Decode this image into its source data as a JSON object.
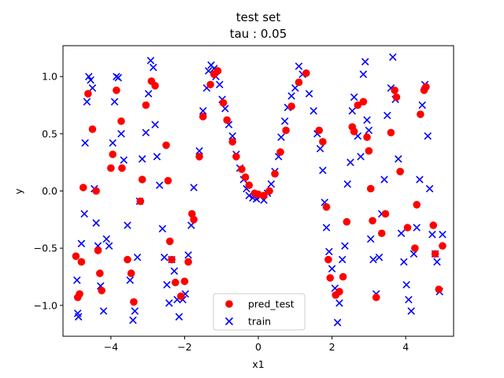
{
  "chart_data": {
    "type": "scatter",
    "title": "test set",
    "subtitle": "tau : 0.05",
    "xlabel": "x1",
    "ylabel": "y",
    "xlim": [
      -5.3,
      5.3
    ],
    "ylim": [
      -1.27,
      1.27
    ],
    "xticks": [
      -4,
      -2,
      0,
      2,
      4
    ],
    "yticks": [
      -1.0,
      -0.5,
      0.0,
      0.5,
      1.0
    ],
    "xtick_labels": [
      "−4",
      "−2",
      "0",
      "2",
      "4"
    ],
    "ytick_labels": [
      "−1.0",
      "−0.5",
      "0.0",
      "0.5",
      "1.0"
    ],
    "grid": false,
    "legend_position": "lower-center",
    "colors": {
      "pred_test": "#ff0000",
      "train": "#0000ff"
    },
    "series": [
      {
        "name": "pred_test",
        "marker": "circle",
        "points": [
          [
            -4.95,
            -0.57
          ],
          [
            -4.9,
            -0.93
          ],
          [
            -4.85,
            -0.9
          ],
          [
            -4.8,
            -0.62
          ],
          [
            -4.75,
            0.03
          ],
          [
            -4.62,
            0.85
          ],
          [
            -4.5,
            0.54
          ],
          [
            -4.4,
            0.0
          ],
          [
            -4.35,
            -0.52
          ],
          [
            -4.3,
            -0.72
          ],
          [
            -4.25,
            -0.87
          ],
          [
            -4.0,
            0.2
          ],
          [
            -3.95,
            0.32
          ],
          [
            -3.85,
            0.88
          ],
          [
            -3.72,
            0.61
          ],
          [
            -3.7,
            0.2
          ],
          [
            -3.55,
            -0.6
          ],
          [
            -3.45,
            -0.72
          ],
          [
            -3.38,
            -0.97
          ],
          [
            -3.2,
            -0.09
          ],
          [
            -3.15,
            0.1
          ],
          [
            -3.05,
            0.75
          ],
          [
            -2.9,
            0.96
          ],
          [
            -2.8,
            0.92
          ],
          [
            -2.5,
            0.4
          ],
          [
            -2.45,
            0.09
          ],
          [
            -2.4,
            -0.44
          ],
          [
            -2.35,
            -0.6
          ],
          [
            -2.25,
            -0.8
          ],
          [
            -2.1,
            -0.92
          ],
          [
            -2.0,
            -0.79
          ],
          [
            -1.9,
            -0.62
          ],
          [
            -1.8,
            -0.2
          ],
          [
            -1.75,
            -0.25
          ],
          [
            -1.6,
            0.3
          ],
          [
            -1.5,
            0.65
          ],
          [
            -1.3,
            0.93
          ],
          [
            -1.2,
            1.02
          ],
          [
            -1.1,
            1.05
          ],
          [
            -0.95,
            0.77
          ],
          [
            -0.85,
            0.62
          ],
          [
            -0.7,
            0.43
          ],
          [
            -0.6,
            0.3
          ],
          [
            -0.45,
            0.19
          ],
          [
            -0.35,
            0.12
          ],
          [
            -0.25,
            0.05
          ],
          [
            -0.1,
            -0.02
          ],
          [
            0.0,
            -0.03
          ],
          [
            0.15,
            -0.04
          ],
          [
            0.3,
            0.0
          ],
          [
            0.45,
            0.15
          ],
          [
            0.6,
            0.34
          ],
          [
            0.75,
            0.53
          ],
          [
            0.9,
            0.74
          ],
          [
            1.1,
            0.95
          ],
          [
            1.3,
            1.03
          ],
          [
            1.65,
            0.53
          ],
          [
            1.75,
            0.43
          ],
          [
            1.85,
            -0.14
          ],
          [
            1.9,
            -0.6
          ],
          [
            1.95,
            -0.76
          ],
          [
            2.1,
            -0.91
          ],
          [
            2.2,
            -0.88
          ],
          [
            2.3,
            -0.75
          ],
          [
            2.4,
            -0.27
          ],
          [
            2.55,
            0.56
          ],
          [
            2.6,
            0.52
          ],
          [
            2.7,
            0.75
          ],
          [
            2.85,
            0.78
          ],
          [
            2.95,
            0.47
          ],
          [
            3.0,
            0.35
          ],
          [
            3.05,
            0.02
          ],
          [
            3.1,
            -0.26
          ],
          [
            3.2,
            -0.93
          ],
          [
            3.35,
            -0.37
          ],
          [
            3.45,
            -0.2
          ],
          [
            3.6,
            0.51
          ],
          [
            3.7,
            0.88
          ],
          [
            3.75,
            0.82
          ],
          [
            3.85,
            0.17
          ],
          [
            4.05,
            -0.32
          ],
          [
            4.25,
            -0.5
          ],
          [
            4.3,
            -0.12
          ],
          [
            4.4,
            0.67
          ],
          [
            4.5,
            0.88
          ],
          [
            4.55,
            0.91
          ],
          [
            4.75,
            -0.3
          ],
          [
            4.8,
            -0.55
          ],
          [
            4.9,
            -0.86
          ],
          [
            5.0,
            -0.48
          ]
        ]
      },
      {
        "name": "train",
        "marker": "x",
        "points": [
          [
            -4.92,
            -0.78
          ],
          [
            -4.9,
            -1.07
          ],
          [
            -4.88,
            -1.1
          ],
          [
            -4.8,
            -0.46
          ],
          [
            -4.72,
            -0.2
          ],
          [
            -4.7,
            0.42
          ],
          [
            -4.65,
            0.78
          ],
          [
            -4.6,
            1.0
          ],
          [
            -4.55,
            0.97
          ],
          [
            -4.5,
            0.9
          ],
          [
            -4.45,
            0.02
          ],
          [
            -4.4,
            -0.28
          ],
          [
            -4.35,
            -0.48
          ],
          [
            -4.28,
            -0.83
          ],
          [
            -4.2,
            -1.05
          ],
          [
            -4.12,
            -0.42
          ],
          [
            -4.05,
            -0.48
          ],
          [
            -3.95,
            0.42
          ],
          [
            -3.9,
            0.78
          ],
          [
            -3.85,
            1.0
          ],
          [
            -3.8,
            0.99
          ],
          [
            -3.72,
            0.5
          ],
          [
            -3.65,
            0.27
          ],
          [
            -3.55,
            -0.3
          ],
          [
            -3.48,
            -0.78
          ],
          [
            -3.4,
            -1.13
          ],
          [
            -3.35,
            -1.05
          ],
          [
            -3.28,
            -0.58
          ],
          [
            -3.22,
            -0.09
          ],
          [
            -3.15,
            0.28
          ],
          [
            -3.05,
            0.51
          ],
          [
            -2.98,
            0.85
          ],
          [
            -2.92,
            1.14
          ],
          [
            -2.85,
            1.08
          ],
          [
            -2.8,
            0.58
          ],
          [
            -2.75,
            0.3
          ],
          [
            -2.68,
            0.05
          ],
          [
            -2.6,
            -0.33
          ],
          [
            -2.55,
            -0.58
          ],
          [
            -2.48,
            -0.82
          ],
          [
            -2.42,
            -0.98
          ],
          [
            -2.35,
            -0.6
          ],
          [
            -2.28,
            -0.7
          ],
          [
            -2.2,
            -0.95
          ],
          [
            -2.15,
            -1.1
          ],
          [
            -2.05,
            -0.95
          ],
          [
            -1.98,
            -0.9
          ],
          [
            -1.9,
            -0.56
          ],
          [
            -1.82,
            -0.3
          ],
          [
            -1.75,
            0.03
          ],
          [
            -1.6,
            0.35
          ],
          [
            -1.5,
            0.7
          ],
          [
            -1.4,
            0.9
          ],
          [
            -1.35,
            1.05
          ],
          [
            -1.28,
            1.1
          ],
          [
            -1.2,
            1.07
          ],
          [
            -1.15,
            1.0
          ],
          [
            -1.05,
            0.93
          ],
          [
            -0.98,
            0.8
          ],
          [
            -0.9,
            0.72
          ],
          [
            -0.8,
            0.58
          ],
          [
            -0.7,
            0.48
          ],
          [
            -0.6,
            0.32
          ],
          [
            -0.5,
            0.2
          ],
          [
            -0.4,
            0.1
          ],
          [
            -0.32,
            0.02
          ],
          [
            -0.25,
            -0.04
          ],
          [
            -0.15,
            -0.06
          ],
          [
            -0.05,
            -0.07
          ],
          [
            0.05,
            -0.05
          ],
          [
            0.15,
            -0.08
          ],
          [
            0.25,
            -0.02
          ],
          [
            0.35,
            0.06
          ],
          [
            0.45,
            0.17
          ],
          [
            0.55,
            0.3
          ],
          [
            0.62,
            0.47
          ],
          [
            0.72,
            0.61
          ],
          [
            0.8,
            0.73
          ],
          [
            0.9,
            0.83
          ],
          [
            1.0,
            0.9
          ],
          [
            1.1,
            1.09
          ],
          [
            1.2,
            1.02
          ],
          [
            1.38,
            0.85
          ],
          [
            1.5,
            0.7
          ],
          [
            1.6,
            0.5
          ],
          [
            1.68,
            0.37
          ],
          [
            1.75,
            0.18
          ],
          [
            1.8,
            -0.1
          ],
          [
            1.85,
            -0.32
          ],
          [
            1.92,
            -0.53
          ],
          [
            2.0,
            -0.68
          ],
          [
            2.08,
            -0.85
          ],
          [
            2.15,
            -1.15
          ],
          [
            2.2,
            -0.98
          ],
          [
            2.28,
            -0.6
          ],
          [
            2.35,
            -0.48
          ],
          [
            2.42,
            0.06
          ],
          [
            2.5,
            0.25
          ],
          [
            2.55,
            0.7
          ],
          [
            2.6,
            0.82
          ],
          [
            2.7,
            0.48
          ],
          [
            2.78,
            0.3
          ],
          [
            2.85,
            1.02
          ],
          [
            2.9,
            1.13
          ],
          [
            2.95,
            0.62
          ],
          [
            3.0,
            0.53
          ],
          [
            3.05,
            -0.42
          ],
          [
            3.12,
            -0.6
          ],
          [
            3.2,
            -0.9
          ],
          [
            3.28,
            -0.58
          ],
          [
            3.35,
            -0.2
          ],
          [
            3.42,
            0.1
          ],
          [
            3.5,
            0.66
          ],
          [
            3.6,
            0.9
          ],
          [
            3.65,
            1.17
          ],
          [
            3.72,
            0.8
          ],
          [
            3.8,
            0.28
          ],
          [
            3.88,
            -0.37
          ],
          [
            3.95,
            -0.62
          ],
          [
            4.02,
            -0.82
          ],
          [
            4.08,
            -0.95
          ],
          [
            4.15,
            -1.05
          ],
          [
            4.22,
            -0.55
          ],
          [
            4.3,
            -0.32
          ],
          [
            4.38,
            0.1
          ],
          [
            4.45,
            0.75
          ],
          [
            4.52,
            0.93
          ],
          [
            4.6,
            0.48
          ],
          [
            4.65,
            0.02
          ],
          [
            4.72,
            -0.38
          ],
          [
            4.8,
            -0.55
          ],
          [
            4.85,
            -0.62
          ],
          [
            4.92,
            -0.88
          ],
          [
            5.0,
            -0.38
          ]
        ]
      }
    ]
  }
}
